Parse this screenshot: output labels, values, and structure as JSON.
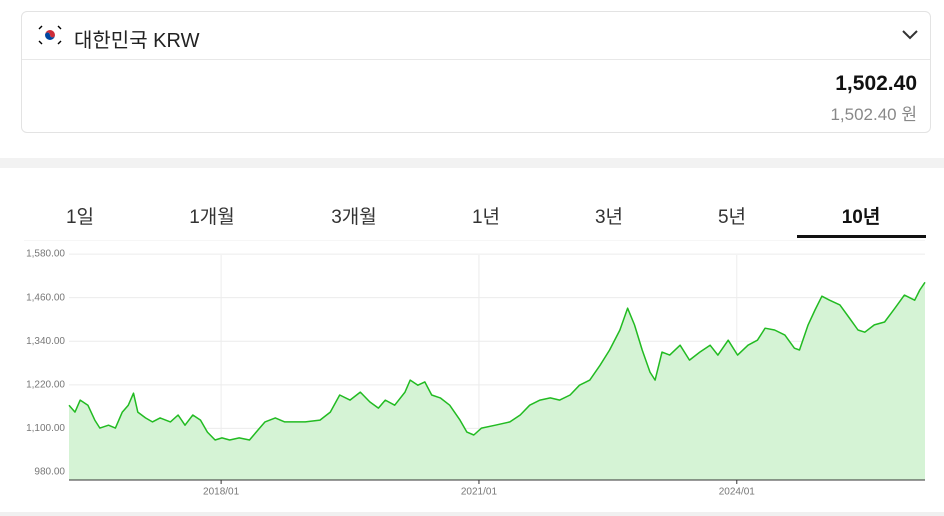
{
  "header": {
    "currency": "대한민국 KRW",
    "amount": "1,502.40",
    "converted": "1,502.40 원"
  },
  "tabs": {
    "items": [
      "1일",
      "1개월",
      "3개월",
      "1년",
      "3년",
      "5년",
      "10년"
    ],
    "selected": 6
  },
  "chart_data": {
    "type": "area",
    "color": "#22bb22",
    "fill": "#d5f3d5",
    "grid": true,
    "x": [
      2016.23,
      2016.3,
      2016.36,
      2016.45,
      2016.53,
      2016.59,
      2016.69,
      2016.77,
      2016.85,
      2016.92,
      2016.98,
      2017.03,
      2017.12,
      2017.2,
      2017.29,
      2017.41,
      2017.5,
      2017.58,
      2017.67,
      2017.76,
      2017.84,
      2017.93,
      2018.01,
      2018.1,
      2018.21,
      2018.33,
      2018.43,
      2018.51,
      2018.63,
      2018.74,
      2018.86,
      2018.98,
      2019.15,
      2019.27,
      2019.38,
      2019.5,
      2019.62,
      2019.73,
      2019.83,
      2019.91,
      2020.02,
      2020.14,
      2020.2,
      2020.29,
      2020.37,
      2020.45,
      2020.55,
      2020.66,
      2020.78,
      2020.86,
      2020.94,
      2021.03,
      2021.19,
      2021.36,
      2021.48,
      2021.59,
      2021.71,
      2021.83,
      2021.94,
      2022.06,
      2022.17,
      2022.29,
      2022.41,
      2022.52,
      2022.64,
      2022.73,
      2022.81,
      2022.9,
      2022.99,
      2023.05,
      2023.13,
      2023.22,
      2023.34,
      2023.45,
      2023.57,
      2023.69,
      2023.78,
      2023.9,
      2024.01,
      2024.13,
      2024.24,
      2024.33,
      2024.44,
      2024.56,
      2024.67,
      2024.73,
      2024.83,
      2024.91,
      2024.99,
      2025.08,
      2025.2,
      2025.31,
      2025.41,
      2025.49,
      2025.6,
      2025.72,
      2025.84,
      2025.95,
      2026.07,
      2026.13,
      2026.19
    ],
    "values": [
      1164,
      1145,
      1178,
      1164,
      1123,
      1101,
      1109,
      1101,
      1145,
      1164,
      1197,
      1145,
      1129,
      1118,
      1129,
      1118,
      1137,
      1109,
      1137,
      1123,
      1090,
      1068,
      1074,
      1068,
      1074,
      1068,
      1096,
      1118,
      1129,
      1118,
      1118,
      1118,
      1123,
      1145,
      1192,
      1178,
      1200,
      1173,
      1156,
      1178,
      1164,
      1200,
      1233,
      1219,
      1228,
      1192,
      1184,
      1164,
      1123,
      1090,
      1082,
      1101,
      1109,
      1118,
      1137,
      1164,
      1178,
      1184,
      1178,
      1192,
      1219,
      1233,
      1274,
      1316,
      1371,
      1431,
      1385,
      1316,
      1255,
      1233,
      1310,
      1302,
      1329,
      1288,
      1310,
      1329,
      1302,
      1343,
      1302,
      1329,
      1343,
      1376,
      1371,
      1357,
      1321,
      1316,
      1385,
      1426,
      1464,
      1453,
      1440,
      1404,
      1371,
      1365,
      1385,
      1393,
      1431,
      1467,
      1453,
      1481,
      1502.4
    ],
    "xlim": [
      2016.23,
      2026.19
    ],
    "xticks": [
      {
        "value": 2018,
        "label": "2018/01"
      },
      {
        "value": 2021,
        "label": "2021/01"
      },
      {
        "value": 2024,
        "label": "2024/01"
      }
    ],
    "ylim": [
      958,
      1605
    ],
    "yticks": [
      {
        "value": 980,
        "label": "980.00"
      },
      {
        "value": 1100,
        "label": "1,100.00"
      },
      {
        "value": 1220,
        "label": "1,220.00"
      },
      {
        "value": 1340,
        "label": "1,340.00"
      },
      {
        "value": 1460,
        "label": "1,460.00"
      },
      {
        "value": 1580,
        "label": "1,580.00"
      }
    ]
  }
}
